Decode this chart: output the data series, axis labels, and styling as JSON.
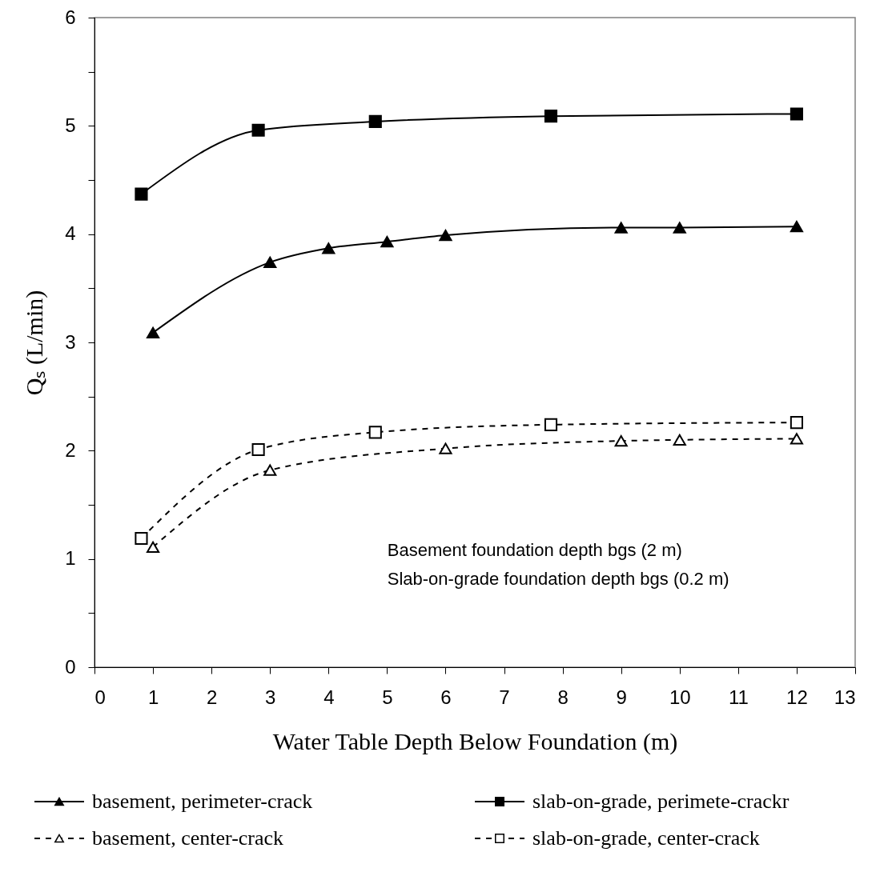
{
  "chart_data": {
    "type": "line",
    "xlabel": "Water Table Depth Below Foundation (m)",
    "ylabel": "Qₛ (L/min)",
    "xlim": [
      0,
      13
    ],
    "xticks": [
      0,
      1,
      2,
      3,
      4,
      5,
      6,
      7,
      8,
      9,
      10,
      11,
      12,
      13
    ],
    "ylim": [
      0,
      6
    ],
    "yticks": [
      0,
      {
        "value": 0.5,
        "label": null
      },
      1,
      {
        "value": 1.5,
        "label": null
      },
      2,
      {
        "value": 2.5,
        "label": null
      },
      3,
      {
        "value": 3.5,
        "label": null
      },
      4,
      {
        "value": 4.5,
        "label": null
      },
      5,
      {
        "value": 5.5,
        "label": null
      },
      6
    ],
    "grid": false,
    "legend": "bottom",
    "annotations": [
      "Basement foundation depth bgs (2 m)",
      "Slab-on-grade foundation depth bgs (0.2 m)"
    ],
    "series": [
      {
        "name": "basement, perimeter-crack",
        "color": "#000000",
        "marker": "triangle",
        "line_style": "solid",
        "x": [
          1,
          3,
          4,
          5,
          6,
          9,
          10,
          12
        ],
        "values": [
          3.09,
          3.74,
          3.87,
          3.93,
          3.99,
          4.06,
          4.06,
          4.07
        ]
      },
      {
        "name": "slab-on-grade, perimete-crackr",
        "color": "#000000",
        "marker": "square",
        "line_style": "solid",
        "x": [
          0.8,
          2.8,
          4.8,
          7.8,
          12
        ],
        "values": [
          4.37,
          4.96,
          5.04,
          5.09,
          5.11
        ]
      },
      {
        "name": "basement, center-crack",
        "color": "#000000",
        "marker": "triangle",
        "line_style": "dashed",
        "x": [
          1,
          3,
          6,
          9,
          10,
          12
        ],
        "values": [
          1.11,
          1.82,
          2.02,
          2.09,
          2.1,
          2.11
        ]
      },
      {
        "name": "slab-on-grade, center-crack",
        "color": "#000000",
        "marker": "square",
        "line_style": "dashed",
        "x": [
          0.8,
          2.8,
          4.8,
          7.8,
          12
        ],
        "values": [
          1.19,
          2.01,
          2.17,
          2.24,
          2.26
        ]
      }
    ]
  }
}
